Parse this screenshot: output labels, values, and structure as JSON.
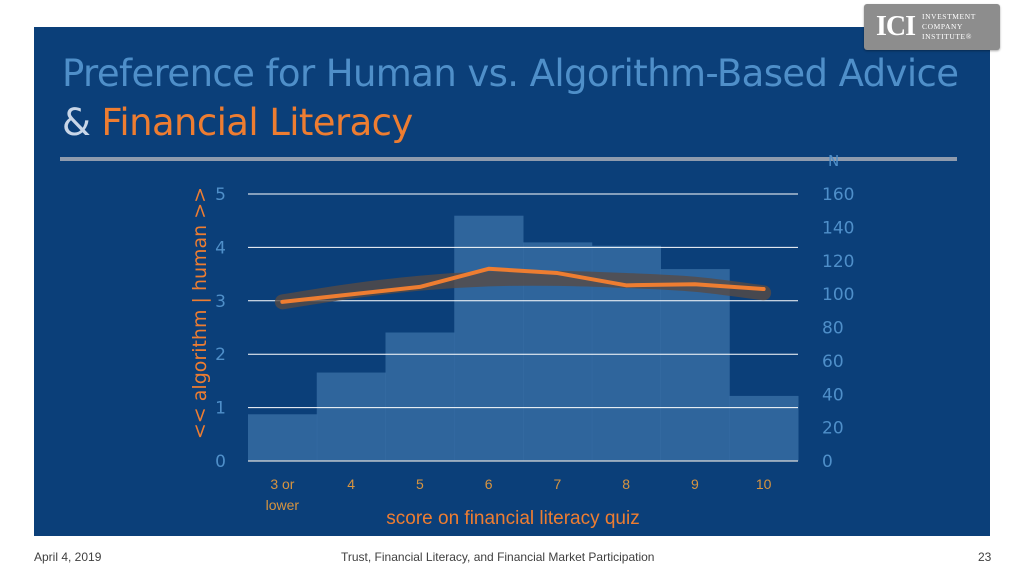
{
  "logo": {
    "mark": "ICI",
    "lines": [
      "INVESTMENT",
      "COMPANY",
      "INSTITUTE®"
    ]
  },
  "title": {
    "line1": "Preference for Human vs. Algorithm-Based Advice",
    "amp": "& ",
    "line2": "Financial Literacy"
  },
  "footer": {
    "date": "April 4, 2019",
    "center": "Trust, Financial Literacy, and Financial Market Participation",
    "page": "23"
  },
  "colors": {
    "panel": "#0b3f79",
    "line": "#ee7d31",
    "bars": "#3a6fa6",
    "axis_text": "#4f8fc9",
    "title_accent": "#ee7d31"
  },
  "chart_data": {
    "type": "bar",
    "categories": [
      "3 or lower",
      "4",
      "5",
      "6",
      "7",
      "8",
      "9",
      "10"
    ],
    "category_lines": [
      [
        "3 or",
        "lower"
      ],
      [
        "4"
      ],
      [
        "5"
      ],
      [
        "6"
      ],
      [
        "7"
      ],
      [
        "8"
      ],
      [
        "9"
      ],
      [
        "10"
      ]
    ],
    "xlabel": "score on financial literacy quiz",
    "ylabel": "<< algorithm  |  human >>",
    "y2label": "N",
    "ylim": [
      0,
      5
    ],
    "y_ticks": [
      0,
      1,
      2,
      3,
      4,
      5
    ],
    "y2lim": [
      0,
      160
    ],
    "y2_ticks": [
      0,
      20,
      40,
      60,
      80,
      100,
      120,
      140,
      160
    ],
    "grid": true,
    "series": [
      {
        "kind": "bar",
        "axis": "right",
        "values": [
          28,
          53,
          77,
          147,
          131,
          129,
          115,
          39
        ]
      },
      {
        "kind": "line",
        "axis": "left",
        "values": [
          2.98,
          3.12,
          3.26,
          3.6,
          3.52,
          3.29,
          3.31,
          3.22
        ]
      },
      {
        "kind": "smoothed-line",
        "axis": "left",
        "values": [
          2.98,
          3.18,
          3.33,
          3.41,
          3.42,
          3.38,
          3.31,
          3.15
        ]
      }
    ]
  }
}
